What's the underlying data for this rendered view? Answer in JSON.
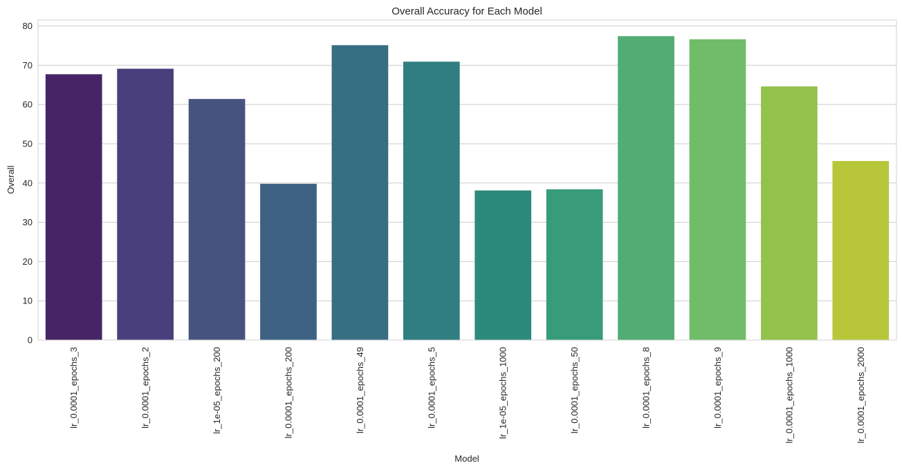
{
  "chart_data": {
    "type": "bar",
    "title": "Overall Accuracy for Each Model",
    "xlabel": "Model",
    "ylabel": "Overall",
    "ylim": [
      0,
      81.5
    ],
    "yticks": [
      0,
      10,
      20,
      30,
      40,
      50,
      60,
      70,
      80
    ],
    "grid": true,
    "categories": [
      "lr_0.0001_epochs_3",
      "lr_0.0001_epochs_2",
      "lr_1e-05_epochs_200",
      "lr_0.0001_epochs_200",
      "lr_0.0001_epochs_49",
      "lr_0.0001_epochs_5",
      "lr_1e-05_epochs_1000",
      "lr_0.0001_epochs_50",
      "lr_0.0001_epochs_8",
      "lr_0.0001_epochs_9",
      "lr_0.0001_epochs_1000",
      "lr_0.0001_epochs_2000"
    ],
    "values": [
      67.7,
      69.1,
      61.4,
      39.8,
      75.1,
      70.9,
      38.1,
      38.4,
      77.4,
      76.6,
      64.6,
      45.6
    ],
    "colors": [
      "#472466",
      "#4a3f7d",
      "#47537f",
      "#3d6284",
      "#366f82",
      "#307e81",
      "#2c8a7c",
      "#389c7a",
      "#51ad73",
      "#71bc69",
      "#93c24c",
      "#b8c73a"
    ],
    "grid_color": "#cccccc",
    "spine_color": "#d0d0d0"
  }
}
